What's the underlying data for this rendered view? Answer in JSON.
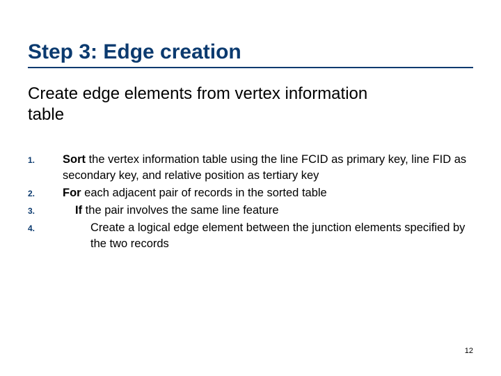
{
  "title": "Step 3: Edge creation",
  "subtitle": "Create edge elements from  vertex information table",
  "steps": {
    "s1": {
      "num": "1.",
      "lead": "Sort",
      "rest": " the vertex information table using the line FCID as primary key, line FID as secondary key, and relative position as tertiary key"
    },
    "s2": {
      "num": "2.",
      "lead": "For",
      "rest": " each adjacent pair of records in the sorted table"
    },
    "s3": {
      "num": "3.",
      "lead": "If",
      "rest": " the pair involves the same line feature"
    },
    "s4": {
      "num": "4.",
      "text": "Create a logical edge element between the junction elements specified by the two records"
    }
  },
  "pagenum": "12",
  "colors": {
    "accent": "#0b3a6f",
    "text": "#000000",
    "background": "#ffffff"
  },
  "typography": {
    "title_fontsize": 30,
    "subtitle_fontsize": 24,
    "body_fontsize": 16.5,
    "stepnum_fontsize": 12,
    "pagenum_fontsize": 11
  }
}
